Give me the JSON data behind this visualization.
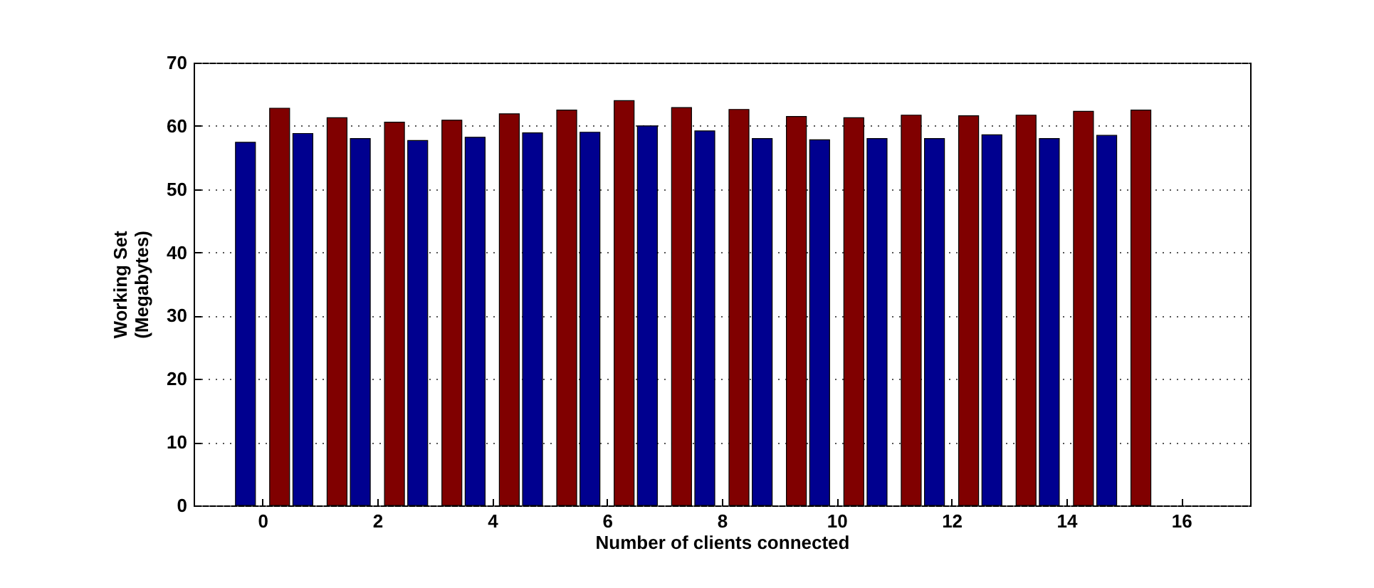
{
  "chart_data": {
    "type": "bar",
    "xlabel": "Number of clients connected",
    "ylabel": "Working Set\n(Megabytes)",
    "x": [
      0,
      1,
      2,
      3,
      4,
      5,
      6,
      7,
      8,
      9,
      10,
      11,
      12,
      13,
      14,
      15
    ],
    "series": [
      {
        "color": "#00008f",
        "values": [
          57.4,
          58.8,
          58.0,
          57.7,
          58.2,
          58.9,
          59.0,
          60.0,
          59.2,
          58.0,
          57.8,
          58.0,
          58.0,
          58.6,
          58.0,
          58.5
        ]
      },
      {
        "color": "#800000",
        "values": [
          62.8,
          61.3,
          60.6,
          60.9,
          61.9,
          62.5,
          64.0,
          62.9,
          62.6,
          61.5,
          61.3,
          61.7,
          61.6,
          61.7,
          62.3,
          62.5
        ]
      }
    ],
    "xlim": [
      -1.2,
      17.2
    ],
    "xticks": [
      0,
      2,
      4,
      6,
      8,
      10,
      12,
      14,
      16
    ],
    "ylim": [
      0,
      70
    ],
    "yticks": [
      0,
      10,
      20,
      30,
      40,
      50,
      60,
      70
    ],
    "grid": "y"
  }
}
